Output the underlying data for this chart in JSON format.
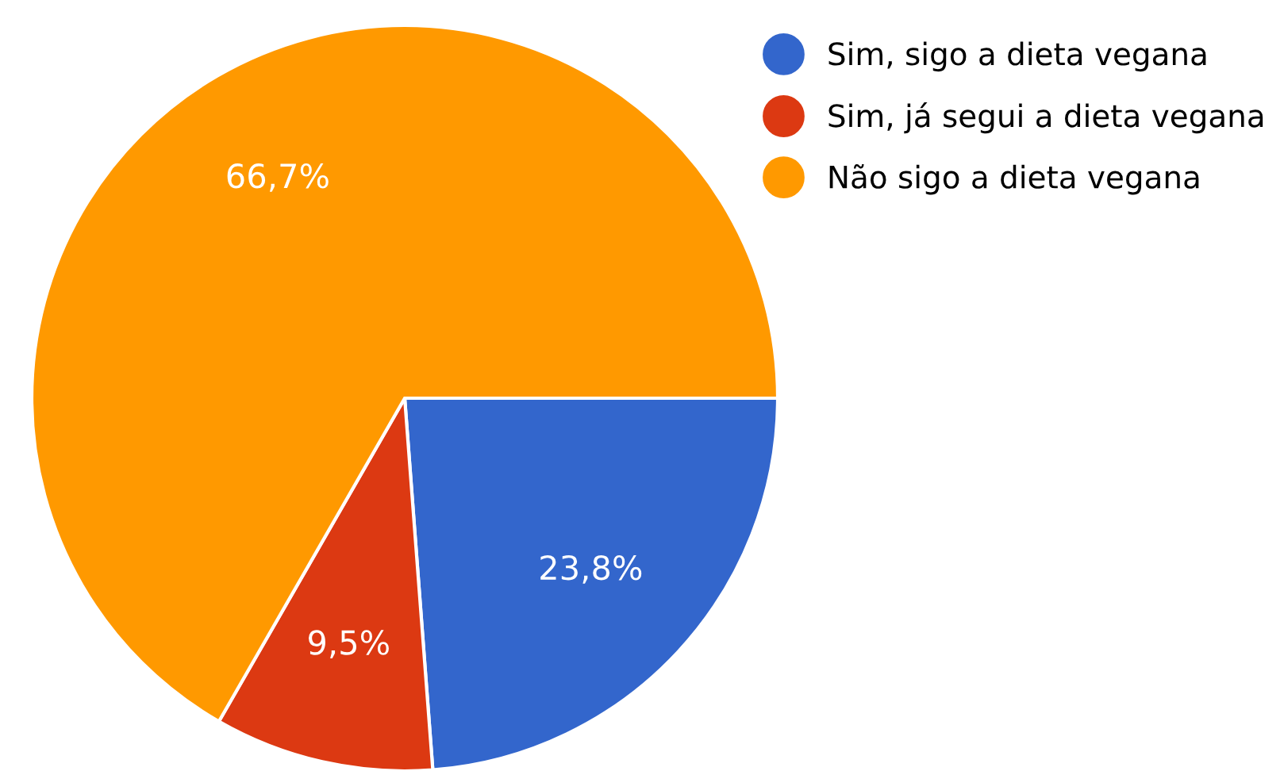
{
  "chart_data": {
    "type": "pie",
    "categories": [
      "Sim, sigo a dieta vegana",
      "Sim, já segui a dieta vegana",
      "Não sigo a dieta vegana"
    ],
    "values": [
      23.8,
      9.5,
      66.7
    ],
    "colors": [
      "#3366cc",
      "#dc3912",
      "#ff9900"
    ],
    "value_labels": [
      "23,8%",
      "9,5%",
      "66,7%"
    ],
    "legend": "top right"
  }
}
